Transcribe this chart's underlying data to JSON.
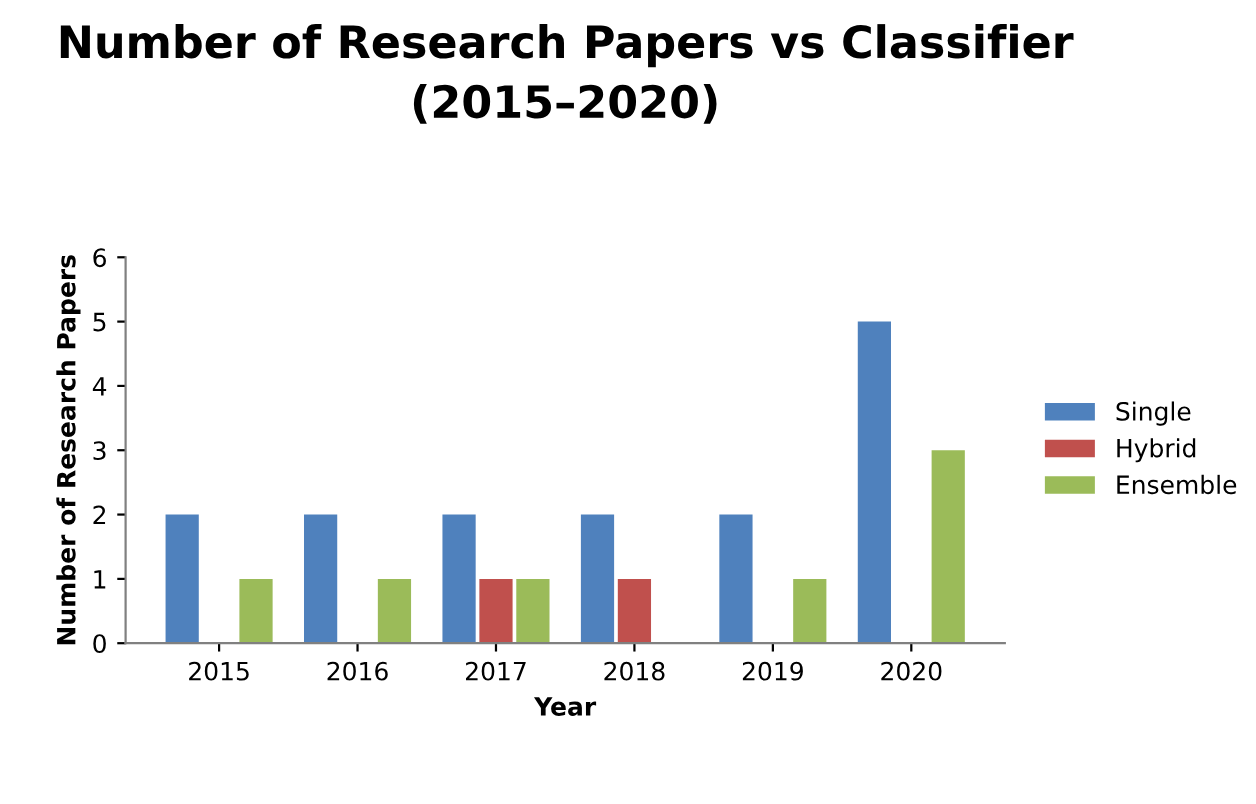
{
  "chart_data": {
    "type": "bar",
    "title": "Number of Research Papers vs Classifier\n(2015–2020)",
    "xlabel": "Year",
    "ylabel": "Number of Research Papers",
    "categories": [
      "2015",
      "2016",
      "2017",
      "2018",
      "2019",
      "2020"
    ],
    "series": [
      {
        "name": "Single",
        "color": "#4f81bd",
        "values": [
          2,
          2,
          2,
          2,
          2,
          5
        ]
      },
      {
        "name": "Hybrid",
        "color": "#c0504d",
        "values": [
          0,
          0,
          1,
          1,
          0,
          0
        ]
      },
      {
        "name": "Ensemble",
        "color": "#9bbb59",
        "values": [
          1,
          1,
          1,
          0,
          1,
          3
        ]
      }
    ],
    "ylim": [
      0,
      6
    ],
    "yticks": [
      0,
      1,
      2,
      3,
      4,
      5,
      6
    ],
    "grid": false,
    "legend": "right"
  }
}
